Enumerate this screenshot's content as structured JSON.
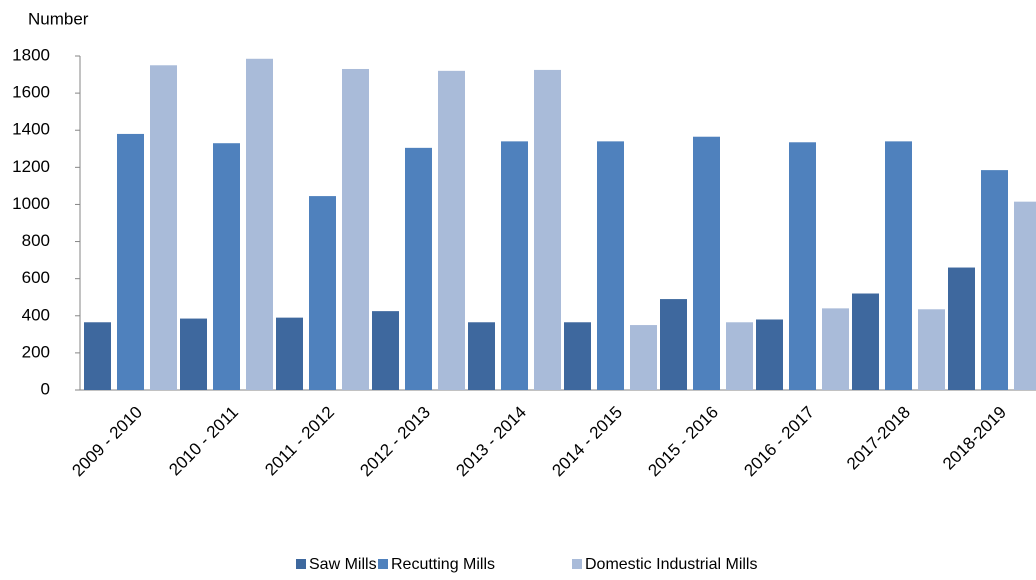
{
  "chart_data": {
    "type": "bar",
    "y_label": "Number",
    "categories": [
      "2009 - 2010",
      "2010 - 2011",
      "2011 - 2012",
      "2012 - 2013",
      "2013 - 2014",
      "2014 - 2015",
      "2015 - 2016",
      "2016 - 2017",
      "2017-2018",
      "2018-2019"
    ],
    "series": [
      {
        "name": "Saw Mills",
        "color": "#3e689e",
        "values": [
          365,
          385,
          390,
          425,
          365,
          365,
          490,
          380,
          520,
          660
        ]
      },
      {
        "name": "Recutting Mills",
        "color": "#4f81bd",
        "values": [
          1380,
          1330,
          1045,
          1305,
          1340,
          1340,
          1365,
          1335,
          1340,
          1185
        ]
      },
      {
        "name": "Domestic Industrial Mills",
        "color": "#a9bbd9",
        "values": [
          1750,
          1785,
          1730,
          1720,
          1725,
          350,
          365,
          440,
          435,
          1015
        ]
      }
    ],
    "ylim": [
      0,
      1800
    ],
    "yticks": [
      0,
      200,
      400,
      600,
      800,
      1000,
      1200,
      1400,
      1600,
      1800
    ],
    "grid": false,
    "legend": "bottom"
  }
}
